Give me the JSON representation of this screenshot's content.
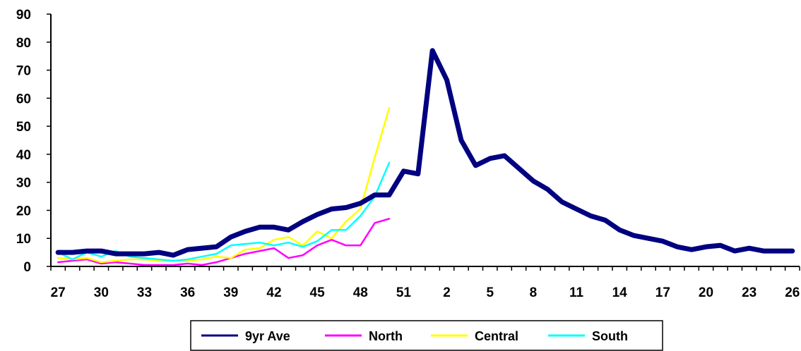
{
  "chart_data": {
    "type": "line",
    "title": "",
    "xlabel": "",
    "ylabel": "",
    "ylim": [
      0,
      90
    ],
    "yticks": [
      0,
      10,
      20,
      30,
      40,
      50,
      60,
      70,
      80,
      90
    ],
    "x": [
      "27",
      "28",
      "29",
      "30",
      "31",
      "32",
      "33",
      "34",
      "35",
      "36",
      "37",
      "38",
      "39",
      "40",
      "41",
      "42",
      "43",
      "44",
      "45",
      "46",
      "47",
      "48",
      "49",
      "50",
      "51",
      "52",
      "1",
      "2",
      "3",
      "4",
      "5",
      "6",
      "7",
      "8",
      "9",
      "10",
      "11",
      "12",
      "13",
      "14",
      "15",
      "16",
      "17",
      "18",
      "19",
      "20",
      "21",
      "22",
      "23",
      "24",
      "25",
      "26"
    ],
    "xtick_labels": [
      "27",
      "30",
      "33",
      "36",
      "39",
      "42",
      "45",
      "48",
      "51",
      "2",
      "5",
      "8",
      "11",
      "14",
      "17",
      "20",
      "23",
      "26"
    ],
    "grid": false,
    "legend_position": "bottom",
    "series": [
      {
        "name": "9yr Ave",
        "color": "#000080",
        "values": [
          5,
          5,
          5.5,
          5.5,
          4.5,
          4.5,
          4.5,
          5,
          4,
          6,
          6.5,
          7,
          10.5,
          12.5,
          14,
          14,
          13,
          16,
          18.5,
          20.5,
          21,
          22.5,
          25.5,
          25.5,
          34,
          33,
          77,
          66.5,
          45,
          36,
          38.5,
          39.5,
          35,
          30.5,
          27.5,
          23,
          20.5,
          18,
          16.5,
          13,
          11,
          10,
          9,
          7,
          6,
          7,
          7.5,
          5.5,
          6.5,
          5.5,
          5.5,
          5.5
        ]
      },
      {
        "name": "North",
        "color": "#FF00FF",
        "values": [
          1.5,
          2,
          2.5,
          1,
          1.5,
          1,
          0.5,
          0.5,
          0.5,
          1,
          0.5,
          1.5,
          3,
          4.5,
          5.5,
          6.5,
          3,
          4,
          7.5,
          9.5,
          7.5,
          7.5,
          15.5,
          17,
          null,
          null,
          null,
          null,
          null,
          null,
          null,
          null,
          null,
          null,
          null,
          null,
          null,
          null,
          null,
          null,
          null,
          null,
          null,
          null,
          null,
          null,
          null,
          null,
          null,
          null,
          null,
          null
        ]
      },
      {
        "name": "Central",
        "color": "#FFFF00",
        "values": [
          3,
          2.5,
          3,
          1.5,
          2,
          2.5,
          2.5,
          2,
          2,
          2,
          2.5,
          3.5,
          3,
          6,
          6.5,
          9.5,
          10.5,
          7.5,
          12.5,
          10,
          16,
          20.5,
          39,
          56.5,
          null,
          null,
          null,
          null,
          null,
          null,
          null,
          null,
          null,
          null,
          null,
          null,
          null,
          null,
          null,
          null,
          null,
          null,
          null,
          null,
          null,
          null,
          null,
          null,
          null,
          null,
          null,
          null
        ]
      },
      {
        "name": "South",
        "color": "#00FFFF",
        "values": [
          5,
          2.5,
          5,
          3.5,
          5.5,
          3.5,
          3,
          2.5,
          2,
          2.5,
          3.5,
          4.5,
          7.5,
          8,
          8.5,
          7.5,
          8.5,
          7,
          9,
          13,
          13,
          18,
          25,
          37,
          null,
          null,
          null,
          null,
          null,
          null,
          null,
          null,
          null,
          null,
          null,
          null,
          null,
          null,
          null,
          null,
          null,
          null,
          null,
          null,
          null,
          null,
          null,
          null,
          null,
          null,
          null,
          null
        ]
      }
    ]
  }
}
